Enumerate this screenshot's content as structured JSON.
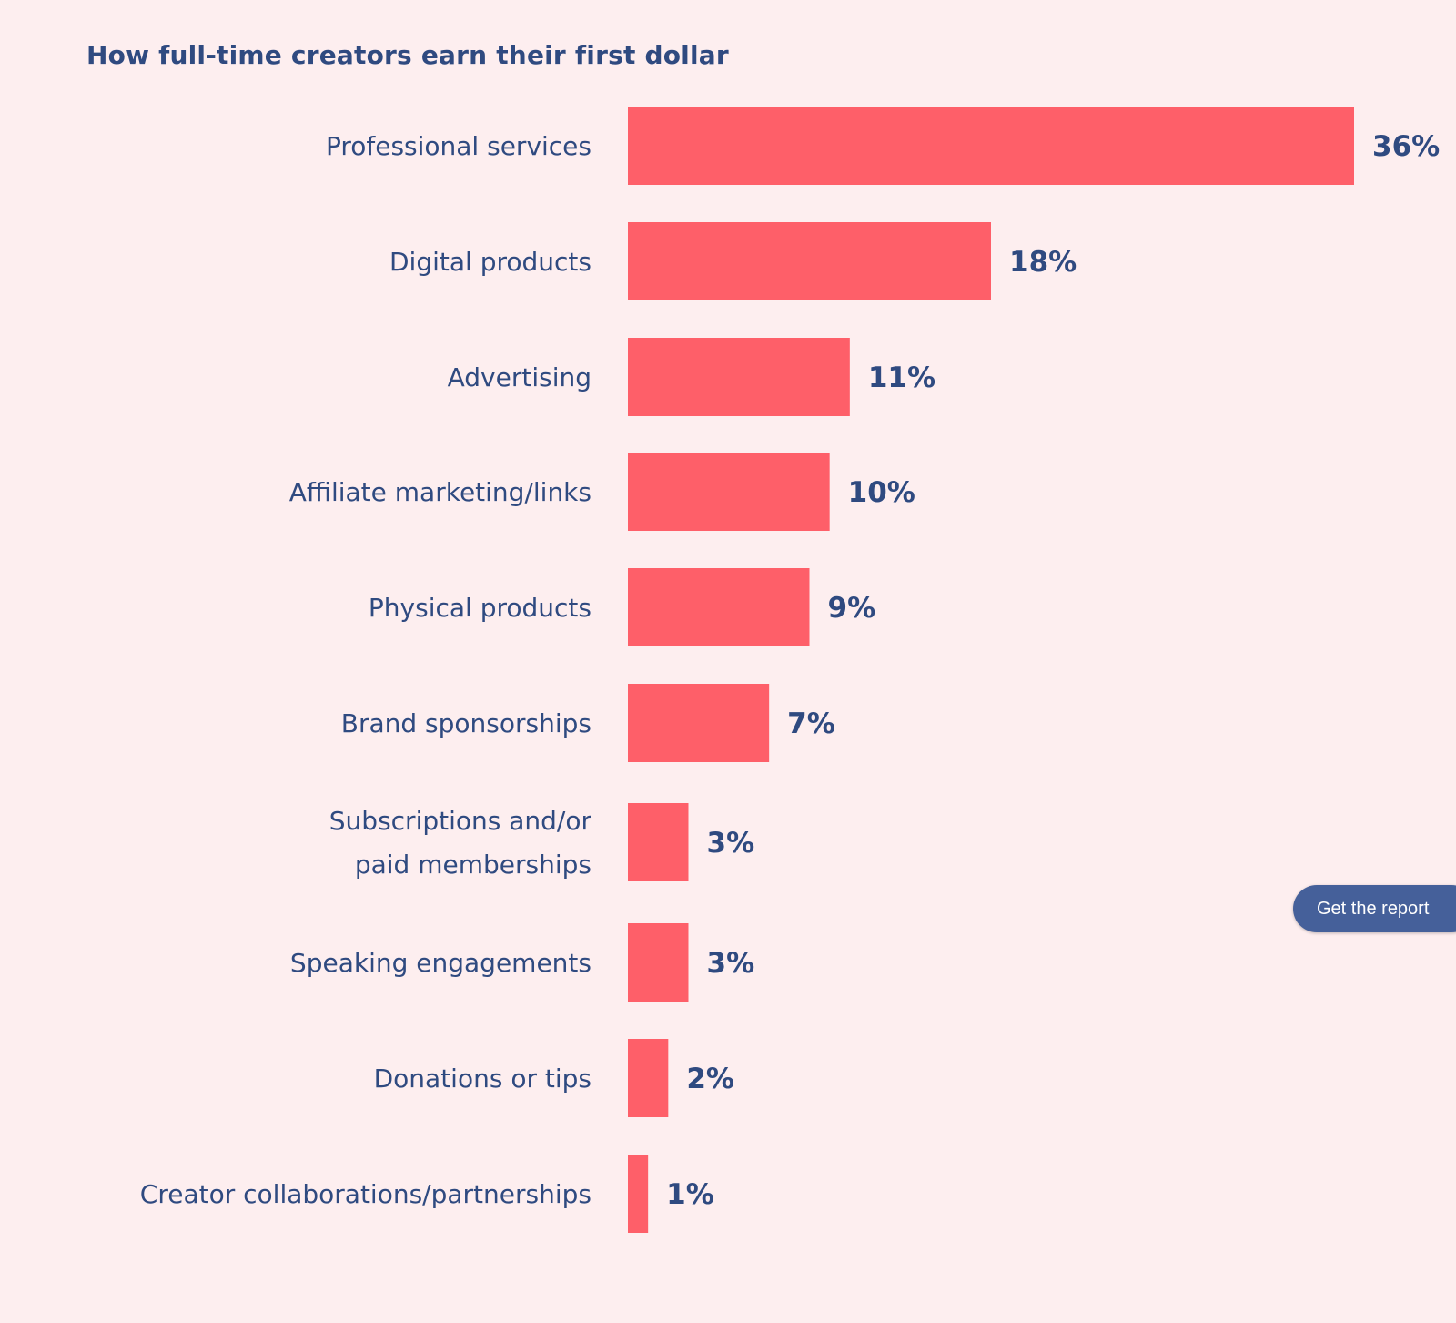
{
  "chart_data": {
    "type": "bar",
    "orientation": "horizontal",
    "title": "How full-time creators earn their first dollar",
    "categories": [
      "Professional services",
      "Digital products",
      "Advertising",
      "Affiliate marketing/links",
      "Physical products",
      "Brand sponsorships",
      "Subscriptions and/or paid memberships",
      "Speaking engagements",
      "Donations or tips",
      "Creator collaborations/partnerships"
    ],
    "category_lines": [
      [
        "Professional services"
      ],
      [
        "Digital products"
      ],
      [
        "Advertising"
      ],
      [
        "Affiliate marketing/links"
      ],
      [
        "Physical products"
      ],
      [
        "Brand sponsorships"
      ],
      [
        "Subscriptions and/or",
        "paid memberships"
      ],
      [
        "Speaking engagements"
      ],
      [
        "Donations or tips"
      ],
      [
        "Creator collaborations/partnerships"
      ]
    ],
    "values": [
      36,
      18,
      11,
      10,
      9,
      7,
      3,
      3,
      2,
      1
    ],
    "value_labels": [
      "36%",
      "18%",
      "11%",
      "10%",
      "9%",
      "7%",
      "3%",
      "3%",
      "2%",
      "1%"
    ],
    "xlabel": "",
    "ylabel": "",
    "xlim": [
      0,
      36
    ],
    "grid": false,
    "legend": "none",
    "colors": {
      "bar": "#fe5f69",
      "text": "#2f4a80",
      "background": "#fdeeef"
    }
  },
  "cta": {
    "label": "Get the report",
    "color": "#45609a"
  }
}
